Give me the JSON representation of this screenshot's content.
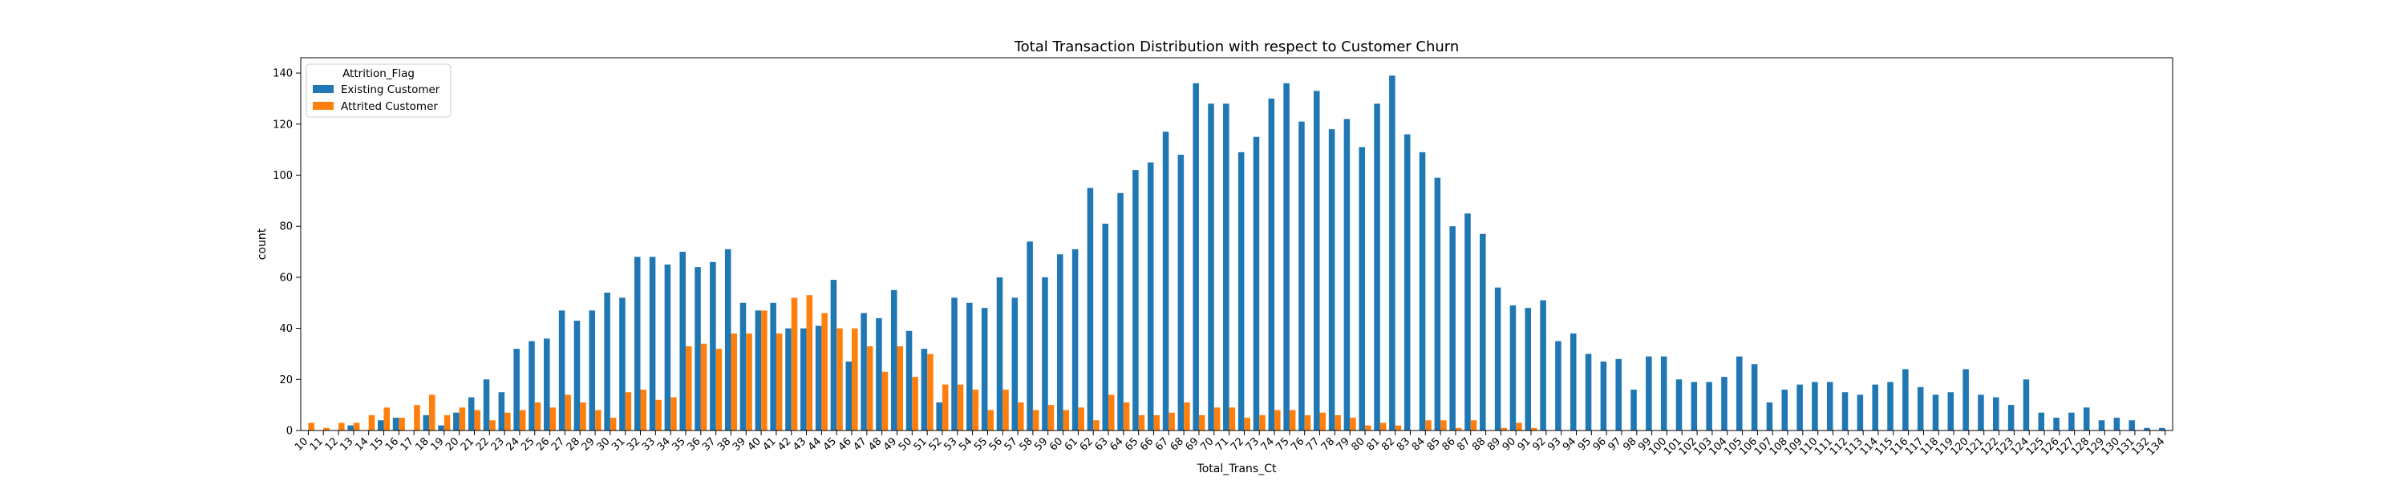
{
  "chart_data": {
    "type": "bar",
    "title": "Total Transaction Distribution with respect to Customer Churn",
    "xlabel": "Total_Trans_Ct",
    "ylabel": "count",
    "ylim": [
      0,
      146
    ],
    "yticks": [
      0,
      20,
      40,
      60,
      80,
      100,
      120,
      140
    ],
    "grid": false,
    "legend": {
      "title": "Attrition_Flag",
      "placement": "top-left"
    },
    "categories": [
      "10",
      "11",
      "12",
      "13",
      "14",
      "15",
      "16",
      "17",
      "18",
      "19",
      "20",
      "21",
      "22",
      "23",
      "24",
      "25",
      "26",
      "27",
      "28",
      "29",
      "30",
      "31",
      "32",
      "33",
      "34",
      "35",
      "36",
      "37",
      "38",
      "39",
      "40",
      "41",
      "42",
      "43",
      "44",
      "45",
      "46",
      "47",
      "48",
      "49",
      "50",
      "51",
      "52",
      "53",
      "54",
      "55",
      "56",
      "57",
      "58",
      "59",
      "60",
      "61",
      "62",
      "63",
      "64",
      "65",
      "66",
      "67",
      "68",
      "69",
      "70",
      "71",
      "72",
      "73",
      "74",
      "75",
      "76",
      "77",
      "78",
      "79",
      "80",
      "81",
      "82",
      "83",
      "84",
      "85",
      "86",
      "87",
      "88",
      "89",
      "90",
      "91",
      "92",
      "93",
      "94",
      "95",
      "96",
      "97",
      "98",
      "99",
      "100",
      "101",
      "102",
      "103",
      "104",
      "105",
      "106",
      "107",
      "108",
      "109",
      "110",
      "111",
      "112",
      "113",
      "114",
      "115",
      "116",
      "117",
      "118",
      "119",
      "120",
      "121",
      "122",
      "123",
      "124",
      "125",
      "126",
      "127",
      "128",
      "129",
      "130",
      "131",
      "132",
      "134"
    ],
    "series": [
      {
        "name": "Existing Customer",
        "color": "#1f77b4",
        "values": [
          0,
          0,
          0,
          2,
          0,
          4,
          5,
          0,
          6,
          2,
          7,
          13,
          20,
          15,
          32,
          35,
          36,
          47,
          43,
          47,
          54,
          52,
          68,
          68,
          65,
          70,
          64,
          66,
          71,
          50,
          47,
          50,
          40,
          40,
          41,
          59,
          27,
          46,
          44,
          55,
          39,
          32,
          11,
          52,
          50,
          48,
          60,
          52,
          74,
          60,
          69,
          71,
          95,
          81,
          93,
          102,
          105,
          117,
          108,
          136,
          128,
          128,
          109,
          115,
          130,
          136,
          121,
          133,
          118,
          122,
          111,
          128,
          139,
          116,
          109,
          99,
          80,
          85,
          77,
          56,
          49,
          48,
          51,
          35,
          38,
          30,
          27,
          28,
          16,
          29,
          29,
          20,
          19,
          19,
          21,
          29,
          26,
          11,
          16,
          18,
          19,
          19,
          15,
          14,
          18,
          19,
          24,
          17,
          14,
          15,
          24,
          14,
          13,
          10,
          20,
          7,
          5,
          7,
          9,
          4,
          5,
          4,
          1,
          1
        ]
      },
      {
        "name": "Attrited Customer",
        "color": "#ff7f0e",
        "values": [
          3,
          1,
          3,
          3,
          6,
          9,
          5,
          10,
          14,
          6,
          9,
          8,
          4,
          7,
          8,
          11,
          9,
          14,
          11,
          8,
          5,
          15,
          16,
          12,
          13,
          33,
          34,
          32,
          38,
          38,
          47,
          38,
          52,
          53,
          46,
          40,
          40,
          33,
          23,
          33,
          21,
          30,
          18,
          18,
          16,
          8,
          16,
          11,
          8,
          10,
          8,
          9,
          4,
          14,
          11,
          6,
          6,
          7,
          11,
          6,
          9,
          9,
          5,
          6,
          8,
          8,
          6,
          7,
          6,
          5,
          2,
          3,
          2,
          0,
          4,
          4,
          1,
          4,
          0,
          1,
          3,
          1,
          0,
          0,
          0,
          0,
          0,
          0,
          0,
          0,
          0,
          0,
          0,
          0,
          0,
          0,
          0,
          0,
          0,
          0,
          0,
          0,
          0,
          0,
          0,
          0,
          0,
          0,
          0,
          0,
          0,
          0,
          0,
          0,
          0,
          0,
          0,
          0,
          0,
          0,
          0,
          0,
          0,
          0
        ]
      }
    ]
  }
}
